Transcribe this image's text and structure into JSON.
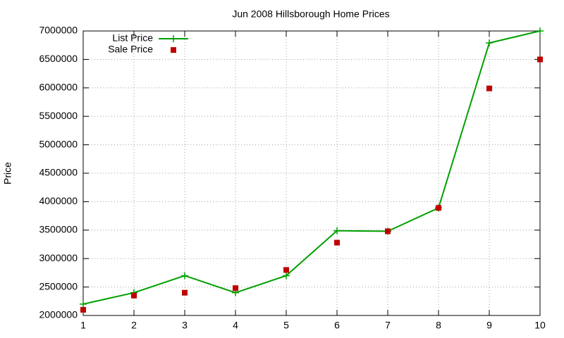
{
  "chart_data": {
    "type": "line",
    "title": "Jun 2008 Hillsborough Home Prices",
    "y_label": "Price",
    "x": [
      1,
      2,
      3,
      4,
      5,
      6,
      7,
      8,
      9,
      10
    ],
    "series": [
      {
        "name": "List Price",
        "color": "#00a000",
        "style": "linespoints",
        "values": [
          2200000,
          2400000,
          2700000,
          2400000,
          2700000,
          3490000,
          3480000,
          3890000,
          6790000,
          7000000
        ]
      },
      {
        "name": "Sale Price",
        "color": "#c00000",
        "style": "points",
        "values": [
          2100000,
          2350000,
          2400000,
          2480000,
          2800000,
          3280000,
          3480000,
          3890000,
          5990000,
          6500000
        ]
      }
    ],
    "xlim": [
      1,
      10
    ],
    "xticks": [
      1,
      2,
      3,
      4,
      5,
      6,
      7,
      8,
      9,
      10
    ],
    "ylim": [
      2000000,
      7000000
    ],
    "yticks": [
      2000000,
      2500000,
      3000000,
      3500000,
      4000000,
      4500000,
      5000000,
      5500000,
      6000000,
      6500000,
      7000000
    ],
    "grid": true,
    "legend": "top-left"
  }
}
